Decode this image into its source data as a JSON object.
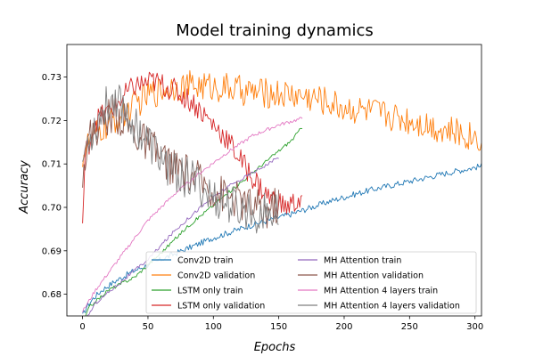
{
  "chart_data": {
    "type": "line",
    "title": "Model training dynamics",
    "xlabel": "Epochs",
    "ylabel": "Accuracy",
    "xlim": [
      -12,
      305
    ],
    "ylim": [
      0.675,
      0.7375
    ],
    "xticks": [
      0,
      50,
      100,
      150,
      200,
      250,
      300
    ],
    "yticks": [
      0.68,
      0.69,
      0.7,
      0.71,
      0.72,
      0.73
    ],
    "ytick_labels": [
      "0.68",
      "0.69",
      "0.70",
      "0.71",
      "0.72",
      "0.73"
    ],
    "grid": false,
    "legend_position": "lower-center",
    "series": [
      {
        "name": "Conv2D train",
        "color": "#1f77b4",
        "noise": 0.0007,
        "points": [
          [
            0,
            0.675
          ],
          [
            3,
            0.677
          ],
          [
            8,
            0.679
          ],
          [
            15,
            0.681
          ],
          [
            25,
            0.683
          ],
          [
            40,
            0.6855
          ],
          [
            60,
            0.688
          ],
          [
            80,
            0.6905
          ],
          [
            100,
            0.693
          ],
          [
            130,
            0.696
          ],
          [
            160,
            0.6985
          ],
          [
            190,
            0.7015
          ],
          [
            220,
            0.704
          ],
          [
            250,
            0.706
          ],
          [
            280,
            0.708
          ],
          [
            305,
            0.7095
          ]
        ]
      },
      {
        "name": "Conv2D validation",
        "color": "#ff7f0e",
        "noise": 0.0035,
        "points": [
          [
            0,
            0.712
          ],
          [
            5,
            0.715
          ],
          [
            15,
            0.718
          ],
          [
            30,
            0.721
          ],
          [
            50,
            0.726
          ],
          [
            70,
            0.728
          ],
          [
            90,
            0.728
          ],
          [
            110,
            0.7275
          ],
          [
            130,
            0.7265
          ],
          [
            160,
            0.726
          ],
          [
            180,
            0.725
          ],
          [
            200,
            0.723
          ],
          [
            230,
            0.7215
          ],
          [
            260,
            0.7195
          ],
          [
            280,
            0.7175
          ],
          [
            305,
            0.716
          ]
        ]
      },
      {
        "name": "LSTM only train",
        "color": "#2ca02c",
        "noise": 0.0004,
        "points": [
          [
            0,
            0.673
          ],
          [
            5,
            0.677
          ],
          [
            20,
            0.681
          ],
          [
            40,
            0.684
          ],
          [
            60,
            0.6895
          ],
          [
            80,
            0.6955
          ],
          [
            100,
            0.7005
          ],
          [
            120,
            0.7055
          ],
          [
            140,
            0.7105
          ],
          [
            160,
            0.7155
          ],
          [
            168,
            0.7185
          ]
        ]
      },
      {
        "name": "LSTM only validation",
        "color": "#d62728",
        "noise": 0.0028,
        "points": [
          [
            0,
            0.696
          ],
          [
            2,
            0.712
          ],
          [
            10,
            0.72
          ],
          [
            20,
            0.722
          ],
          [
            40,
            0.728
          ],
          [
            55,
            0.729
          ],
          [
            70,
            0.727
          ],
          [
            85,
            0.724
          ],
          [
            100,
            0.719
          ],
          [
            110,
            0.716
          ],
          [
            125,
            0.709
          ],
          [
            140,
            0.703
          ],
          [
            155,
            0.7
          ],
          [
            168,
            0.702
          ]
        ]
      },
      {
        "name": "MH Attention train",
        "color": "#9467bd",
        "noise": 0.0004,
        "points": [
          [
            0,
            0.673
          ],
          [
            10,
            0.678
          ],
          [
            30,
            0.683
          ],
          [
            50,
            0.688
          ],
          [
            70,
            0.6945
          ],
          [
            90,
            0.7
          ],
          [
            110,
            0.7045
          ],
          [
            130,
            0.708
          ],
          [
            150,
            0.7115
          ]
        ]
      },
      {
        "name": "MH Attention validation",
        "color": "#8c564b",
        "noise": 0.0045,
        "points": [
          [
            0,
            0.709
          ],
          [
            5,
            0.716
          ],
          [
            15,
            0.72
          ],
          [
            25,
            0.722
          ],
          [
            40,
            0.717
          ],
          [
            55,
            0.713
          ],
          [
            70,
            0.709
          ],
          [
            85,
            0.707
          ],
          [
            100,
            0.704
          ],
          [
            120,
            0.7015
          ],
          [
            140,
            0.699
          ],
          [
            150,
            0.701
          ]
        ]
      },
      {
        "name": "MH Attention 4 layers train",
        "color": "#e377c2",
        "noise": 0.0004,
        "points": [
          [
            0,
            0.676
          ],
          [
            10,
            0.681
          ],
          [
            30,
            0.689
          ],
          [
            50,
            0.697
          ],
          [
            70,
            0.703
          ],
          [
            90,
            0.708
          ],
          [
            110,
            0.7125
          ],
          [
            130,
            0.7165
          ],
          [
            150,
            0.719
          ],
          [
            168,
            0.7205
          ]
        ]
      },
      {
        "name": "MH Attention 4 layers validation",
        "color": "#7f7f7f",
        "noise": 0.0048,
        "points": [
          [
            0,
            0.711
          ],
          [
            5,
            0.716
          ],
          [
            15,
            0.722
          ],
          [
            25,
            0.726
          ],
          [
            40,
            0.719
          ],
          [
            55,
            0.713
          ],
          [
            70,
            0.708
          ],
          [
            85,
            0.706
          ],
          [
            100,
            0.702
          ],
          [
            120,
            0.6995
          ],
          [
            140,
            0.6985
          ],
          [
            150,
            0.699
          ]
        ]
      }
    ]
  }
}
